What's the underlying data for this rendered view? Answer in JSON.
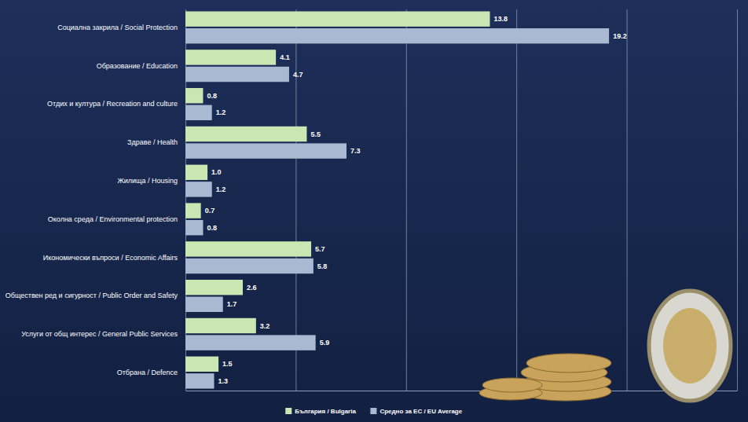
{
  "chart_data": {
    "type": "bar",
    "orientation": "horizontal",
    "categories": [
      "Социална закрила / Social Protection",
      "Образование / Education",
      "Отдих и култура / Recreation and culture",
      "Здраве / Health",
      "Жилища / Housing",
      "Околна среда / Environmental protection",
      "Икономически въпроси / Economic Affairs",
      "Обществен ред и сигурност / Public Order and Safety",
      "Услуги от общ интерес / General Public Services",
      "Отбрана / Defence"
    ],
    "series": [
      {
        "name": "България / Bulgaria",
        "color": "#c9e6b3",
        "values": [
          13.8,
          4.1,
          0.8,
          5.5,
          1.0,
          0.7,
          5.7,
          2.6,
          3.2,
          1.5
        ],
        "value_labels": [
          "13.8",
          "4.1",
          "0.8",
          "5.5",
          "1.0",
          "0.7",
          "5.7",
          "2.6",
          "3.2",
          "1.5"
        ]
      },
      {
        "name": "Средно за ЕС / EU Average",
        "color": "#aab9d2",
        "values": [
          19.2,
          4.7,
          1.2,
          7.3,
          1.2,
          0.8,
          5.8,
          1.7,
          5.9,
          1.3
        ],
        "value_labels": [
          "19.2",
          "4.7",
          "1.2",
          "7.3",
          "1.2",
          "0.8",
          "5.8",
          "1.7",
          "5.9",
          "1.3"
        ]
      }
    ],
    "xlim": [
      0,
      25
    ],
    "xticks": [
      0,
      5,
      10,
      15,
      20,
      25
    ],
    "grid": true,
    "tick_labels": "y",
    "data_labels": true,
    "legend": "bottom"
  }
}
